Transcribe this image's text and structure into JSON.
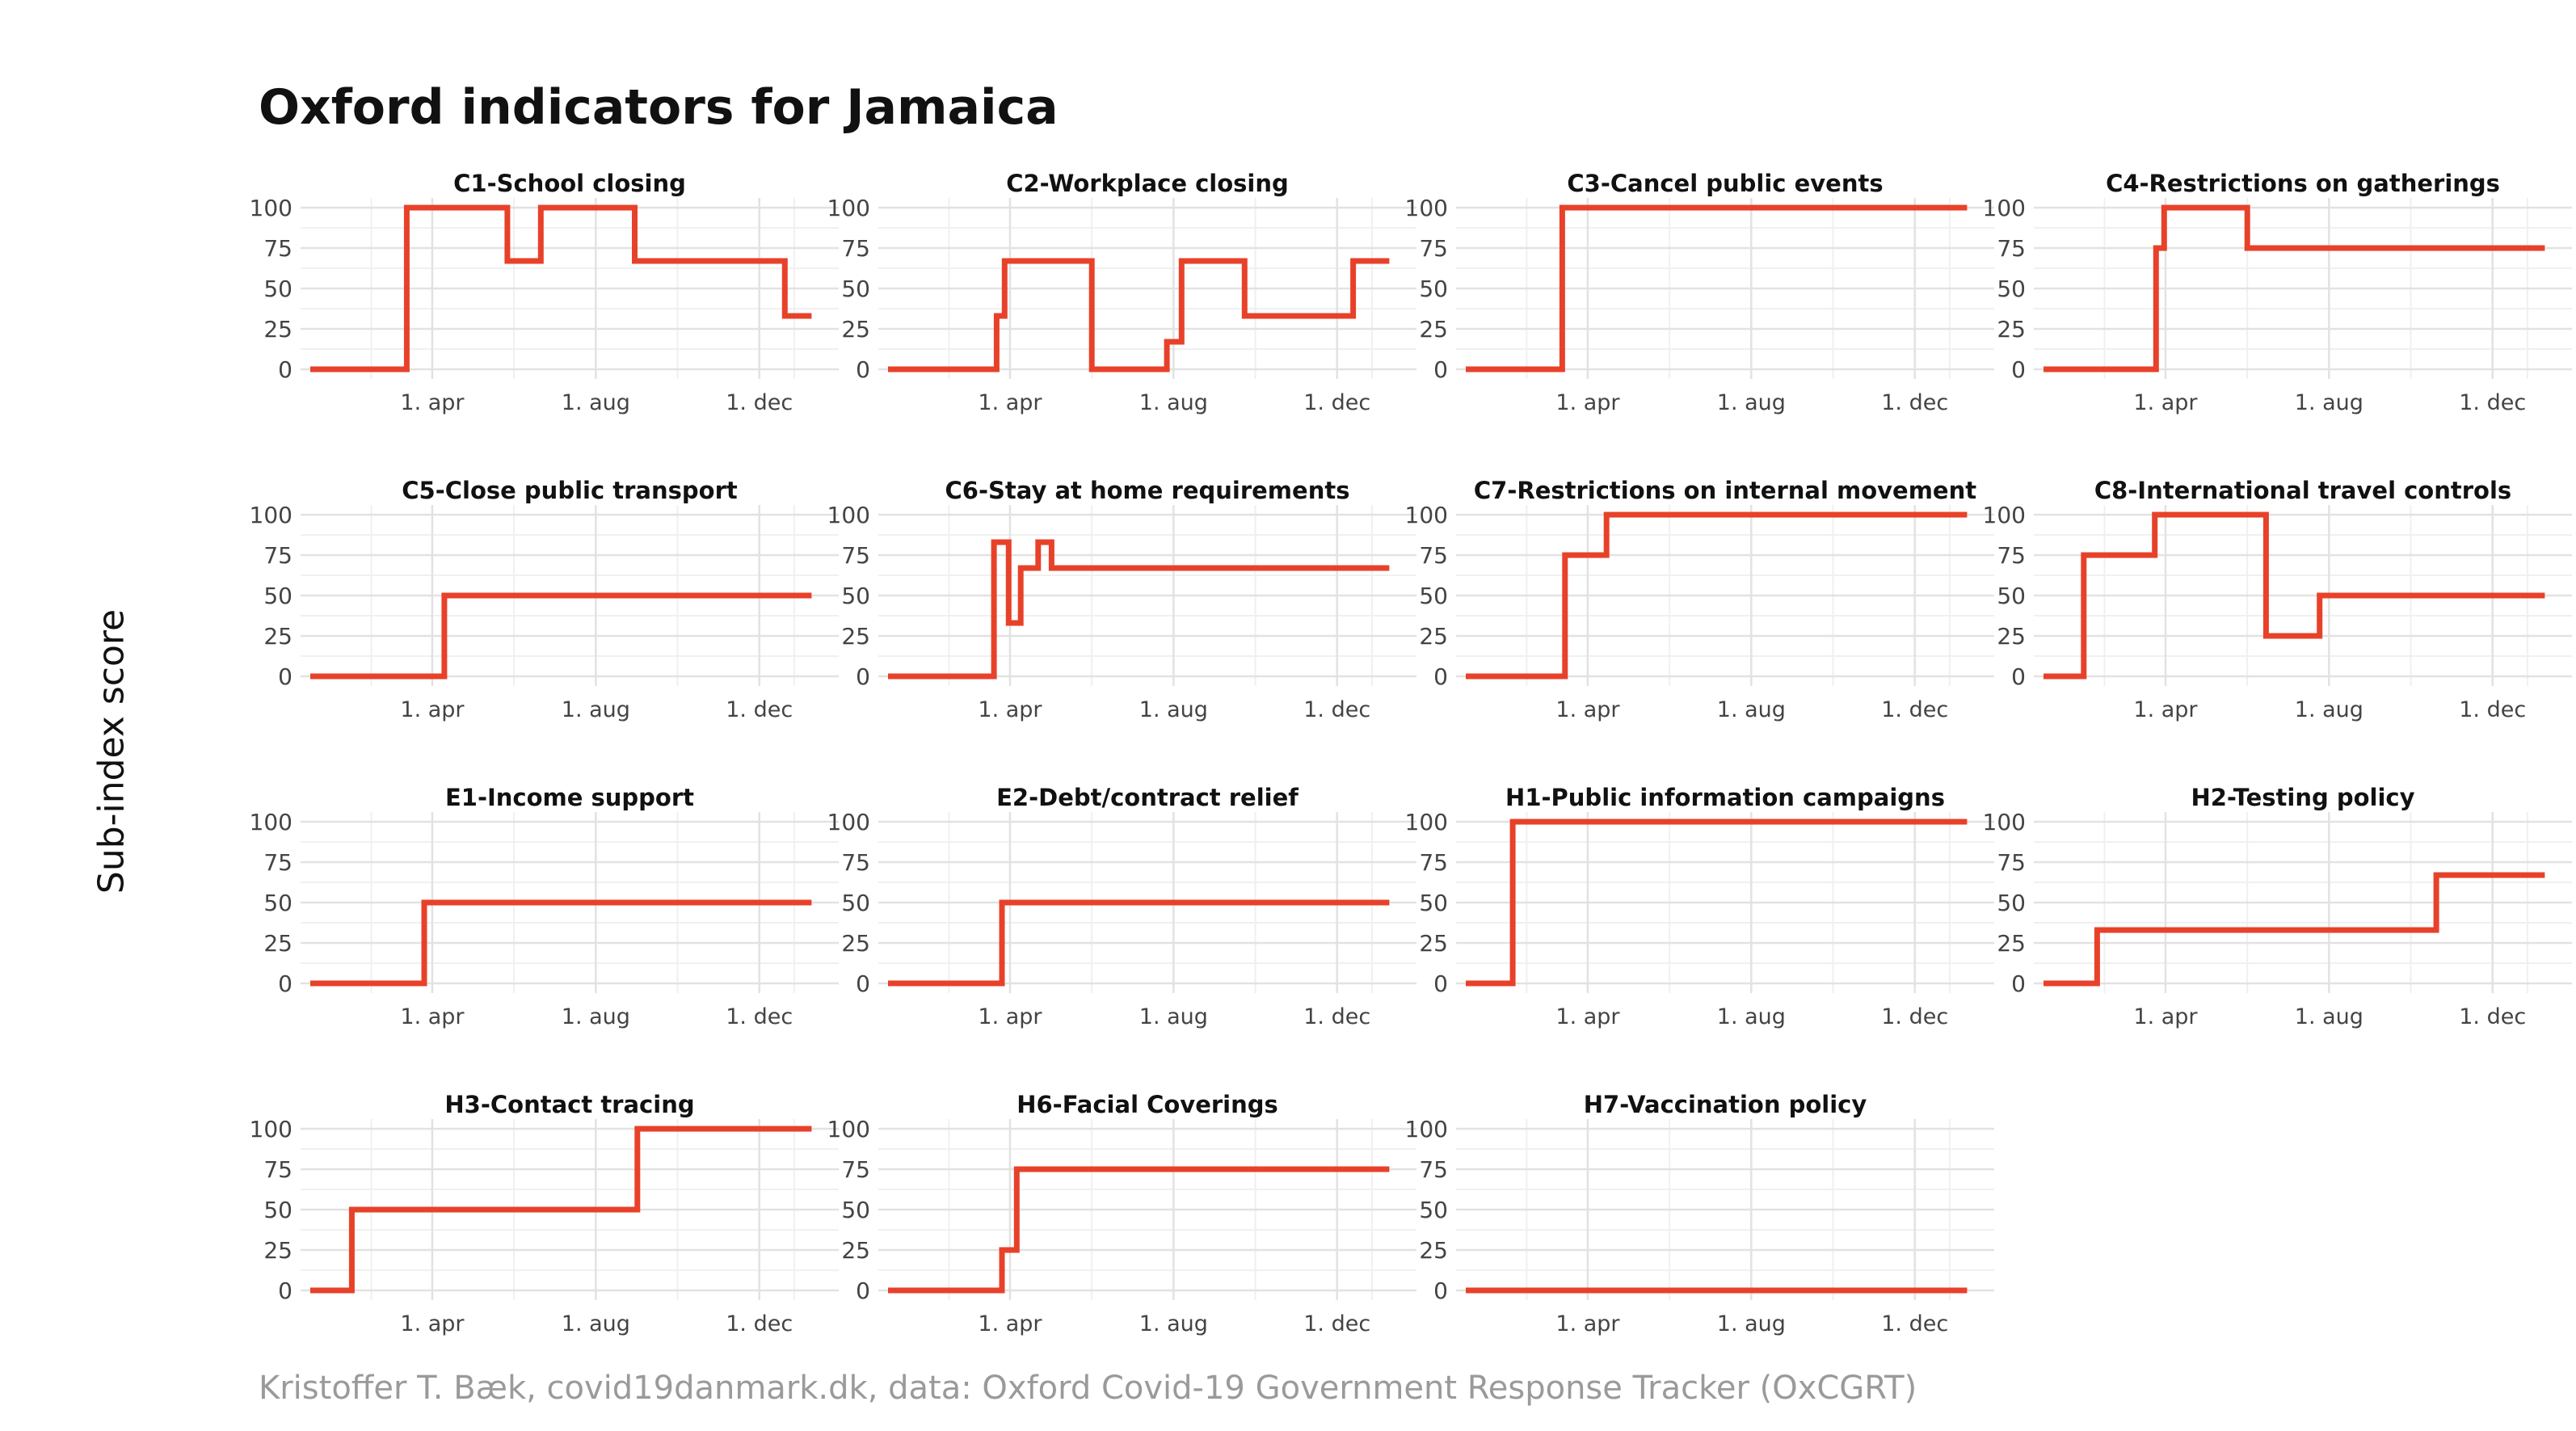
{
  "title": "Oxford indicators for Jamaica",
  "ylabel": "Sub-index score",
  "caption": "Kristoffer T. Bæk, covid19danmark.dk, data: Oxford Covid-19 Government Response Tracker (OxCGRT)",
  "line_color": "#e8412a",
  "chart_data": {
    "type": "line",
    "x_unit": "date",
    "xlim": [
      "2020-01-01",
      "2021-01-22"
    ],
    "x_ticks": [
      {
        "date": "2020-04-01",
        "label": "1. apr"
      },
      {
        "date": "2020-08-01",
        "label": "1. aug"
      },
      {
        "date": "2020-12-01",
        "label": "1. dec"
      }
    ],
    "y_ticks": [
      0,
      25,
      50,
      75,
      100
    ],
    "ylim": [
      0,
      100
    ],
    "grid": true,
    "panels": [
      {
        "title": "C1-School closing",
        "steps": [
          [
            "2020-01-01",
            0
          ],
          [
            "2020-03-13",
            100
          ],
          [
            "2020-05-27",
            67
          ],
          [
            "2020-06-21",
            100
          ],
          [
            "2020-08-30",
            67
          ],
          [
            "2020-12-20",
            33
          ]
        ],
        "end": "2021-01-09"
      },
      {
        "title": "C2-Workplace closing",
        "steps": [
          [
            "2020-01-01",
            0
          ],
          [
            "2020-03-22",
            33
          ],
          [
            "2020-03-28",
            67
          ],
          [
            "2020-06-01",
            0
          ],
          [
            "2020-07-27",
            17
          ],
          [
            "2020-08-07",
            67
          ],
          [
            "2020-09-23",
            33
          ],
          [
            "2020-12-13",
            67
          ]
        ],
        "end": "2021-01-09"
      },
      {
        "title": "C3-Cancel public events",
        "steps": [
          [
            "2020-01-01",
            0
          ],
          [
            "2020-03-13",
            100
          ]
        ],
        "end": "2021-01-09"
      },
      {
        "title": "C4-Restrictions on gatherings",
        "steps": [
          [
            "2020-01-01",
            0
          ],
          [
            "2020-03-25",
            75
          ],
          [
            "2020-03-31",
            100
          ],
          [
            "2020-06-01",
            75
          ]
        ],
        "end": "2021-01-09"
      },
      {
        "title": "C5-Close public transport",
        "steps": [
          [
            "2020-01-01",
            0
          ],
          [
            "2020-04-10",
            50
          ]
        ],
        "end": "2021-01-09"
      },
      {
        "title": "C6-Stay at home requirements",
        "steps": [
          [
            "2020-01-01",
            0
          ],
          [
            "2020-03-20",
            83
          ],
          [
            "2020-03-31",
            33
          ],
          [
            "2020-04-09",
            67
          ],
          [
            "2020-04-22",
            83
          ],
          [
            "2020-05-02",
            67
          ]
        ],
        "end": "2021-01-09"
      },
      {
        "title": "C7-Restrictions on internal movement",
        "steps": [
          [
            "2020-01-01",
            0
          ],
          [
            "2020-03-15",
            75
          ],
          [
            "2020-04-15",
            100
          ]
        ],
        "end": "2021-01-09"
      },
      {
        "title": "C8-International travel controls",
        "steps": [
          [
            "2020-01-01",
            0
          ],
          [
            "2020-01-31",
            75
          ],
          [
            "2020-03-24",
            100
          ],
          [
            "2020-06-15",
            25
          ],
          [
            "2020-07-25",
            50
          ]
        ],
        "end": "2021-01-09"
      },
      {
        "title": "E1-Income support",
        "steps": [
          [
            "2020-01-01",
            0
          ],
          [
            "2020-03-26",
            50
          ]
        ],
        "end": "2021-01-09"
      },
      {
        "title": "E2-Debt/contract relief",
        "steps": [
          [
            "2020-01-01",
            0
          ],
          [
            "2020-03-26",
            50
          ]
        ],
        "end": "2021-01-09"
      },
      {
        "title": "H1-Public information campaigns",
        "steps": [
          [
            "2020-01-01",
            0
          ],
          [
            "2020-02-05",
            100
          ]
        ],
        "end": "2021-01-09"
      },
      {
        "title": "H2-Testing policy",
        "steps": [
          [
            "2020-01-01",
            0
          ],
          [
            "2020-02-10",
            33
          ],
          [
            "2020-10-20",
            67
          ]
        ],
        "end": "2021-01-09"
      },
      {
        "title": "H3-Contact tracing",
        "steps": [
          [
            "2020-01-01",
            0
          ],
          [
            "2020-02-01",
            50
          ],
          [
            "2020-09-01",
            100
          ]
        ],
        "end": "2021-01-09"
      },
      {
        "title": "H6-Facial Coverings",
        "steps": [
          [
            "2020-01-01",
            0
          ],
          [
            "2020-03-26",
            25
          ],
          [
            "2020-04-06",
            75
          ]
        ],
        "end": "2021-01-09"
      },
      {
        "title": "H7-Vaccination policy",
        "steps": [
          [
            "2020-01-01",
            0
          ]
        ],
        "end": "2021-01-09"
      }
    ]
  }
}
